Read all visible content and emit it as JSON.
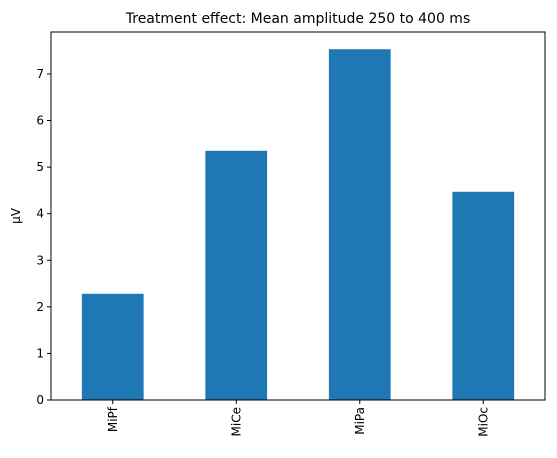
{
  "chart_data": {
    "type": "bar",
    "title": "Treatment effect: Mean amplitude 250 to 400 ms",
    "xlabel": "",
    "ylabel": "μV",
    "categories": [
      "MiPf",
      "MiCe",
      "MiPa",
      "MiOc"
    ],
    "values": [
      2.28,
      5.35,
      7.53,
      4.47
    ],
    "ylim": [
      0,
      7.9
    ],
    "yticks": [
      0,
      1,
      2,
      3,
      4,
      5,
      6,
      7
    ],
    "bar_color": "#1f77b4",
    "grid": false,
    "legend": "none",
    "xtick_rotation": "vertical"
  }
}
